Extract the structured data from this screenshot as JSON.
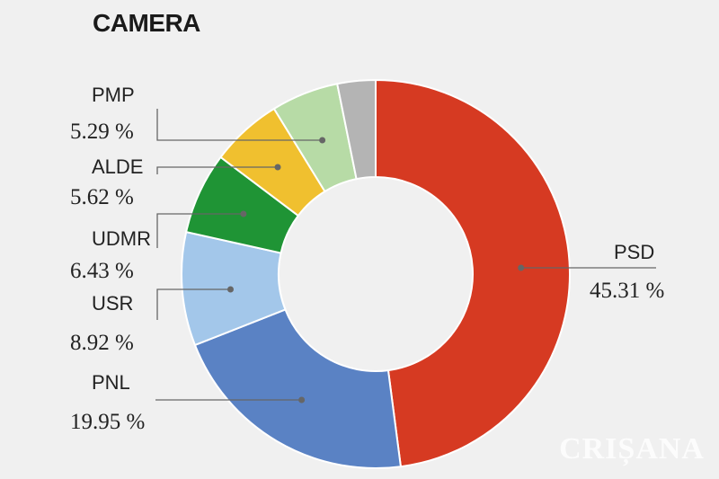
{
  "chart_data": {
    "type": "pie",
    "title": "CAMERA",
    "series": [
      {
        "name": "PSD",
        "value": 45.31,
        "label": "45.31 %",
        "color": "#d63a22"
      },
      {
        "name": "PNL",
        "value": 19.95,
        "label": "19.95 %",
        "color": "#5a82c4"
      },
      {
        "name": "USR",
        "value": 8.92,
        "label": "8.92 %",
        "color": "#a3c7ea"
      },
      {
        "name": "UDMR",
        "value": 6.43,
        "label": "6.43 %",
        "color": "#1f9435"
      },
      {
        "name": "ALDE",
        "value": 5.62,
        "label": "5.62 %",
        "color": "#f0c02f"
      },
      {
        "name": "PMP",
        "value": 5.29,
        "label": "5.29 %",
        "color": "#b7dba6"
      },
      {
        "name": "",
        "value": 3.0,
        "label": "",
        "color": "#b4b4b4"
      }
    ]
  },
  "watermark": "CRIȘANA"
}
